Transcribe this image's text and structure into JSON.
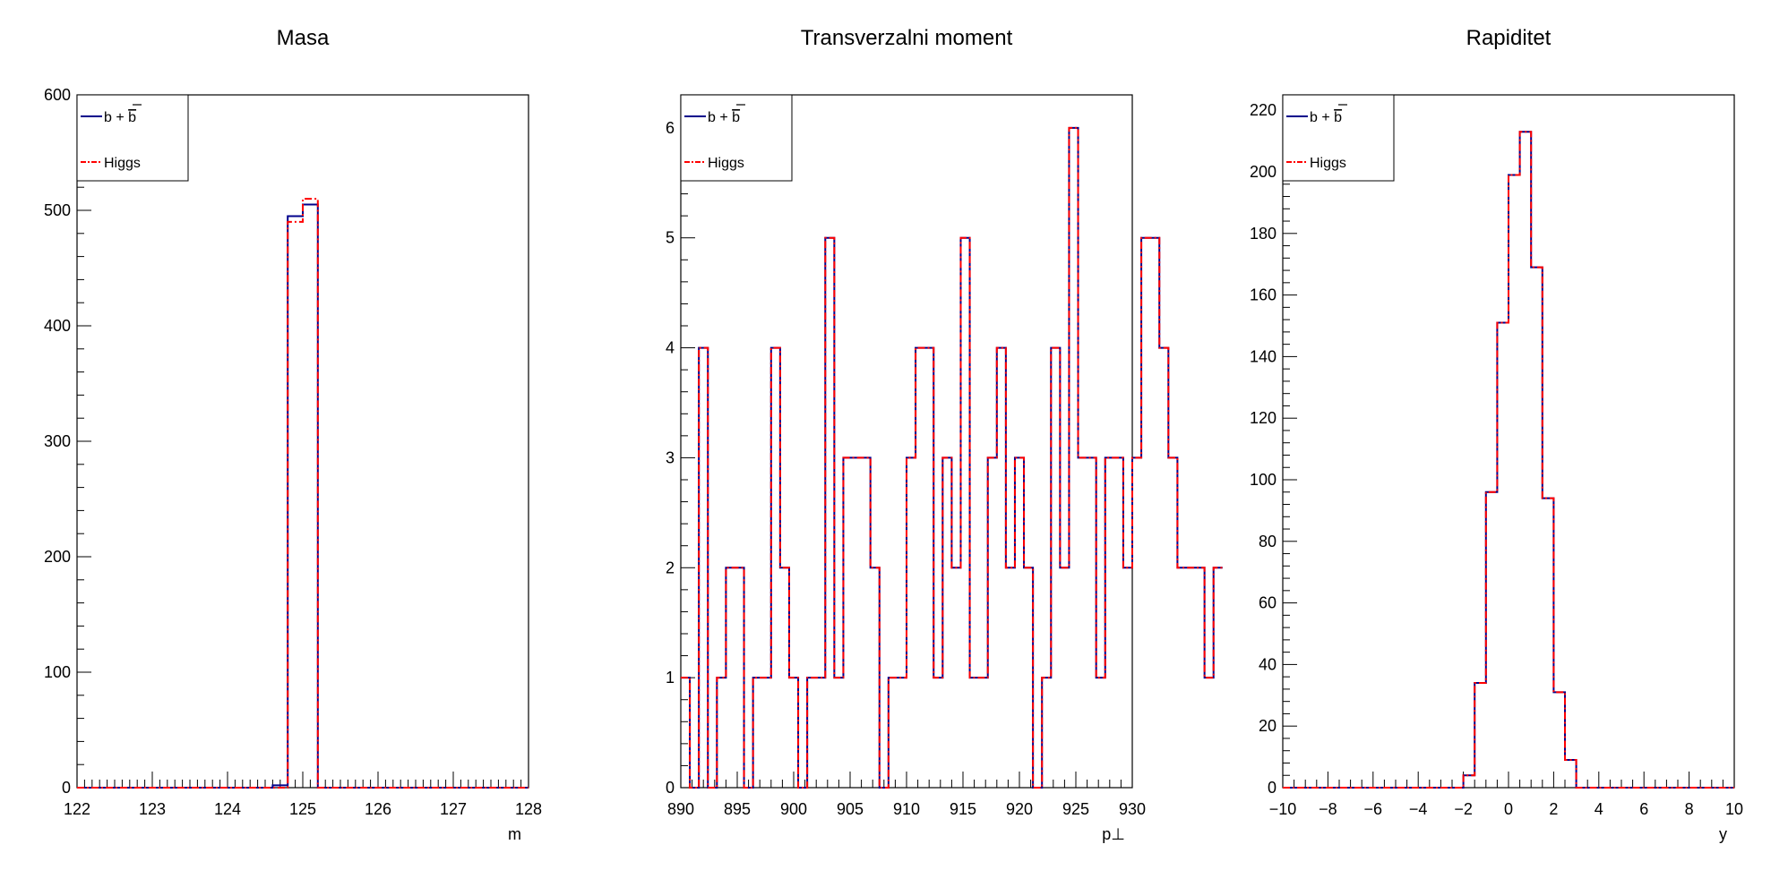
{
  "colors": {
    "bb_line": "#00008b",
    "higgs_line": "#ff0000",
    "frame": "#000000",
    "background": "#ffffff"
  },
  "legend_labels": {
    "bb_base": "b + ",
    "bb_bar": "b",
    "higgs": "Higgs"
  },
  "chart_data": [
    {
      "type": "histogram",
      "title": "Masa",
      "xlabel": "m",
      "xlim": [
        122,
        128
      ],
      "ylim": [
        0,
        600
      ],
      "xticks": [
        122,
        123,
        124,
        125,
        126,
        127,
        128
      ],
      "xtick_labels": [
        "122",
        "123",
        "124",
        "125",
        "126",
        "127",
        "128"
      ],
      "yticks": [
        0,
        100,
        200,
        300,
        400,
        500,
        600
      ],
      "ytick_labels": [
        "0",
        "100",
        "200",
        "300",
        "400",
        "500",
        "600"
      ],
      "legend": "top-left",
      "series": [
        {
          "name": "b + b̄",
          "style": "solid",
          "x": [
            122,
            124.6,
            124.8,
            125.0,
            125.2,
            128
          ],
          "values": [
            0,
            2,
            495,
            505,
            0
          ]
        },
        {
          "name": "Higgs",
          "style": "dash-dot",
          "x": [
            122,
            124.8,
            125.0,
            125.2,
            128
          ],
          "values": [
            0,
            490,
            510,
            0
          ]
        }
      ]
    },
    {
      "type": "histogram",
      "title": "Transverzalni moment",
      "xlabel": "p⊥",
      "xlim": [
        890,
        930
      ],
      "ylim": [
        0,
        6.3
      ],
      "xticks": [
        890,
        895,
        900,
        905,
        910,
        915,
        920,
        925,
        930
      ],
      "xtick_labels": [
        "890",
        "895",
        "900",
        "905",
        "910",
        "915",
        "920",
        "925",
        "930"
      ],
      "yticks": [
        0,
        1,
        2,
        3,
        4,
        5,
        6
      ],
      "ytick_labels": [
        "0",
        "1",
        "2",
        "3",
        "4",
        "5",
        "6"
      ],
      "legend": "top-left",
      "series": [
        {
          "name": "b + b̄",
          "style": "solid",
          "x0": 890,
          "bin_width": 0.8,
          "values": [
            1,
            0,
            4,
            0,
            1,
            2,
            2,
            0,
            1,
            1,
            4,
            2,
            1,
            0,
            1,
            1,
            5,
            1,
            3,
            3,
            3,
            2,
            0,
            1,
            1,
            3,
            4,
            4,
            1,
            3,
            2,
            5,
            1,
            1,
            3,
            4,
            2,
            3,
            2,
            0,
            1,
            4,
            2,
            6,
            3,
            3,
            1,
            3,
            3,
            2,
            3,
            5,
            5,
            4,
            3,
            2,
            2,
            2,
            1,
            2
          ]
        },
        {
          "name": "Higgs",
          "style": "dash-dot",
          "x0": 890,
          "bin_width": 0.8,
          "values": [
            1,
            0,
            4,
            0,
            1,
            2,
            2,
            0,
            1,
            1,
            4,
            2,
            1,
            0,
            1,
            1,
            5,
            1,
            3,
            3,
            3,
            2,
            0,
            1,
            1,
            3,
            4,
            4,
            1,
            3,
            2,
            5,
            1,
            1,
            3,
            4,
            2,
            3,
            2,
            0,
            1,
            4,
            2,
            6,
            3,
            3,
            1,
            3,
            3,
            2,
            3,
            5,
            5,
            4,
            3,
            2,
            2,
            2,
            1,
            2
          ]
        }
      ]
    },
    {
      "type": "histogram",
      "title": "Rapiditet",
      "xlabel": "y",
      "xlim": [
        -10,
        10
      ],
      "ylim": [
        0,
        225
      ],
      "xticks": [
        -10,
        -8,
        -6,
        -4,
        -2,
        0,
        2,
        4,
        6,
        8,
        10
      ],
      "xtick_labels": [
        "−10",
        "−8",
        "−6",
        "−4",
        "−2",
        "0",
        "2",
        "4",
        "6",
        "8",
        "10"
      ],
      "yticks": [
        0,
        20,
        40,
        60,
        80,
        100,
        120,
        140,
        160,
        180,
        200,
        220
      ],
      "ytick_labels": [
        "0",
        "20",
        "40",
        "60",
        "80",
        "100",
        "120",
        "140",
        "160",
        "180",
        "200",
        "220"
      ],
      "legend": "top-left",
      "series": [
        {
          "name": "b + b̄",
          "style": "solid",
          "x0": -10,
          "bin_width": 0.5,
          "values": [
            0,
            0,
            0,
            0,
            0,
            0,
            0,
            0,
            0,
            0,
            0,
            0,
            0,
            0,
            0,
            0,
            4,
            34,
            96,
            151,
            199,
            213,
            169,
            94,
            31,
            9,
            0,
            0,
            0,
            0,
            0,
            0,
            0,
            0,
            0,
            0,
            0,
            0,
            0,
            0
          ]
        },
        {
          "name": "Higgs",
          "style": "dash-dot",
          "x0": -10,
          "bin_width": 0.5,
          "values": [
            0,
            0,
            0,
            0,
            0,
            0,
            0,
            0,
            0,
            0,
            0,
            0,
            0,
            0,
            0,
            0,
            4,
            34,
            96,
            151,
            199,
            213,
            169,
            94,
            31,
            9,
            0,
            0,
            0,
            0,
            0,
            0,
            0,
            0,
            0,
            0,
            0,
            0,
            0,
            0
          ]
        }
      ]
    }
  ]
}
